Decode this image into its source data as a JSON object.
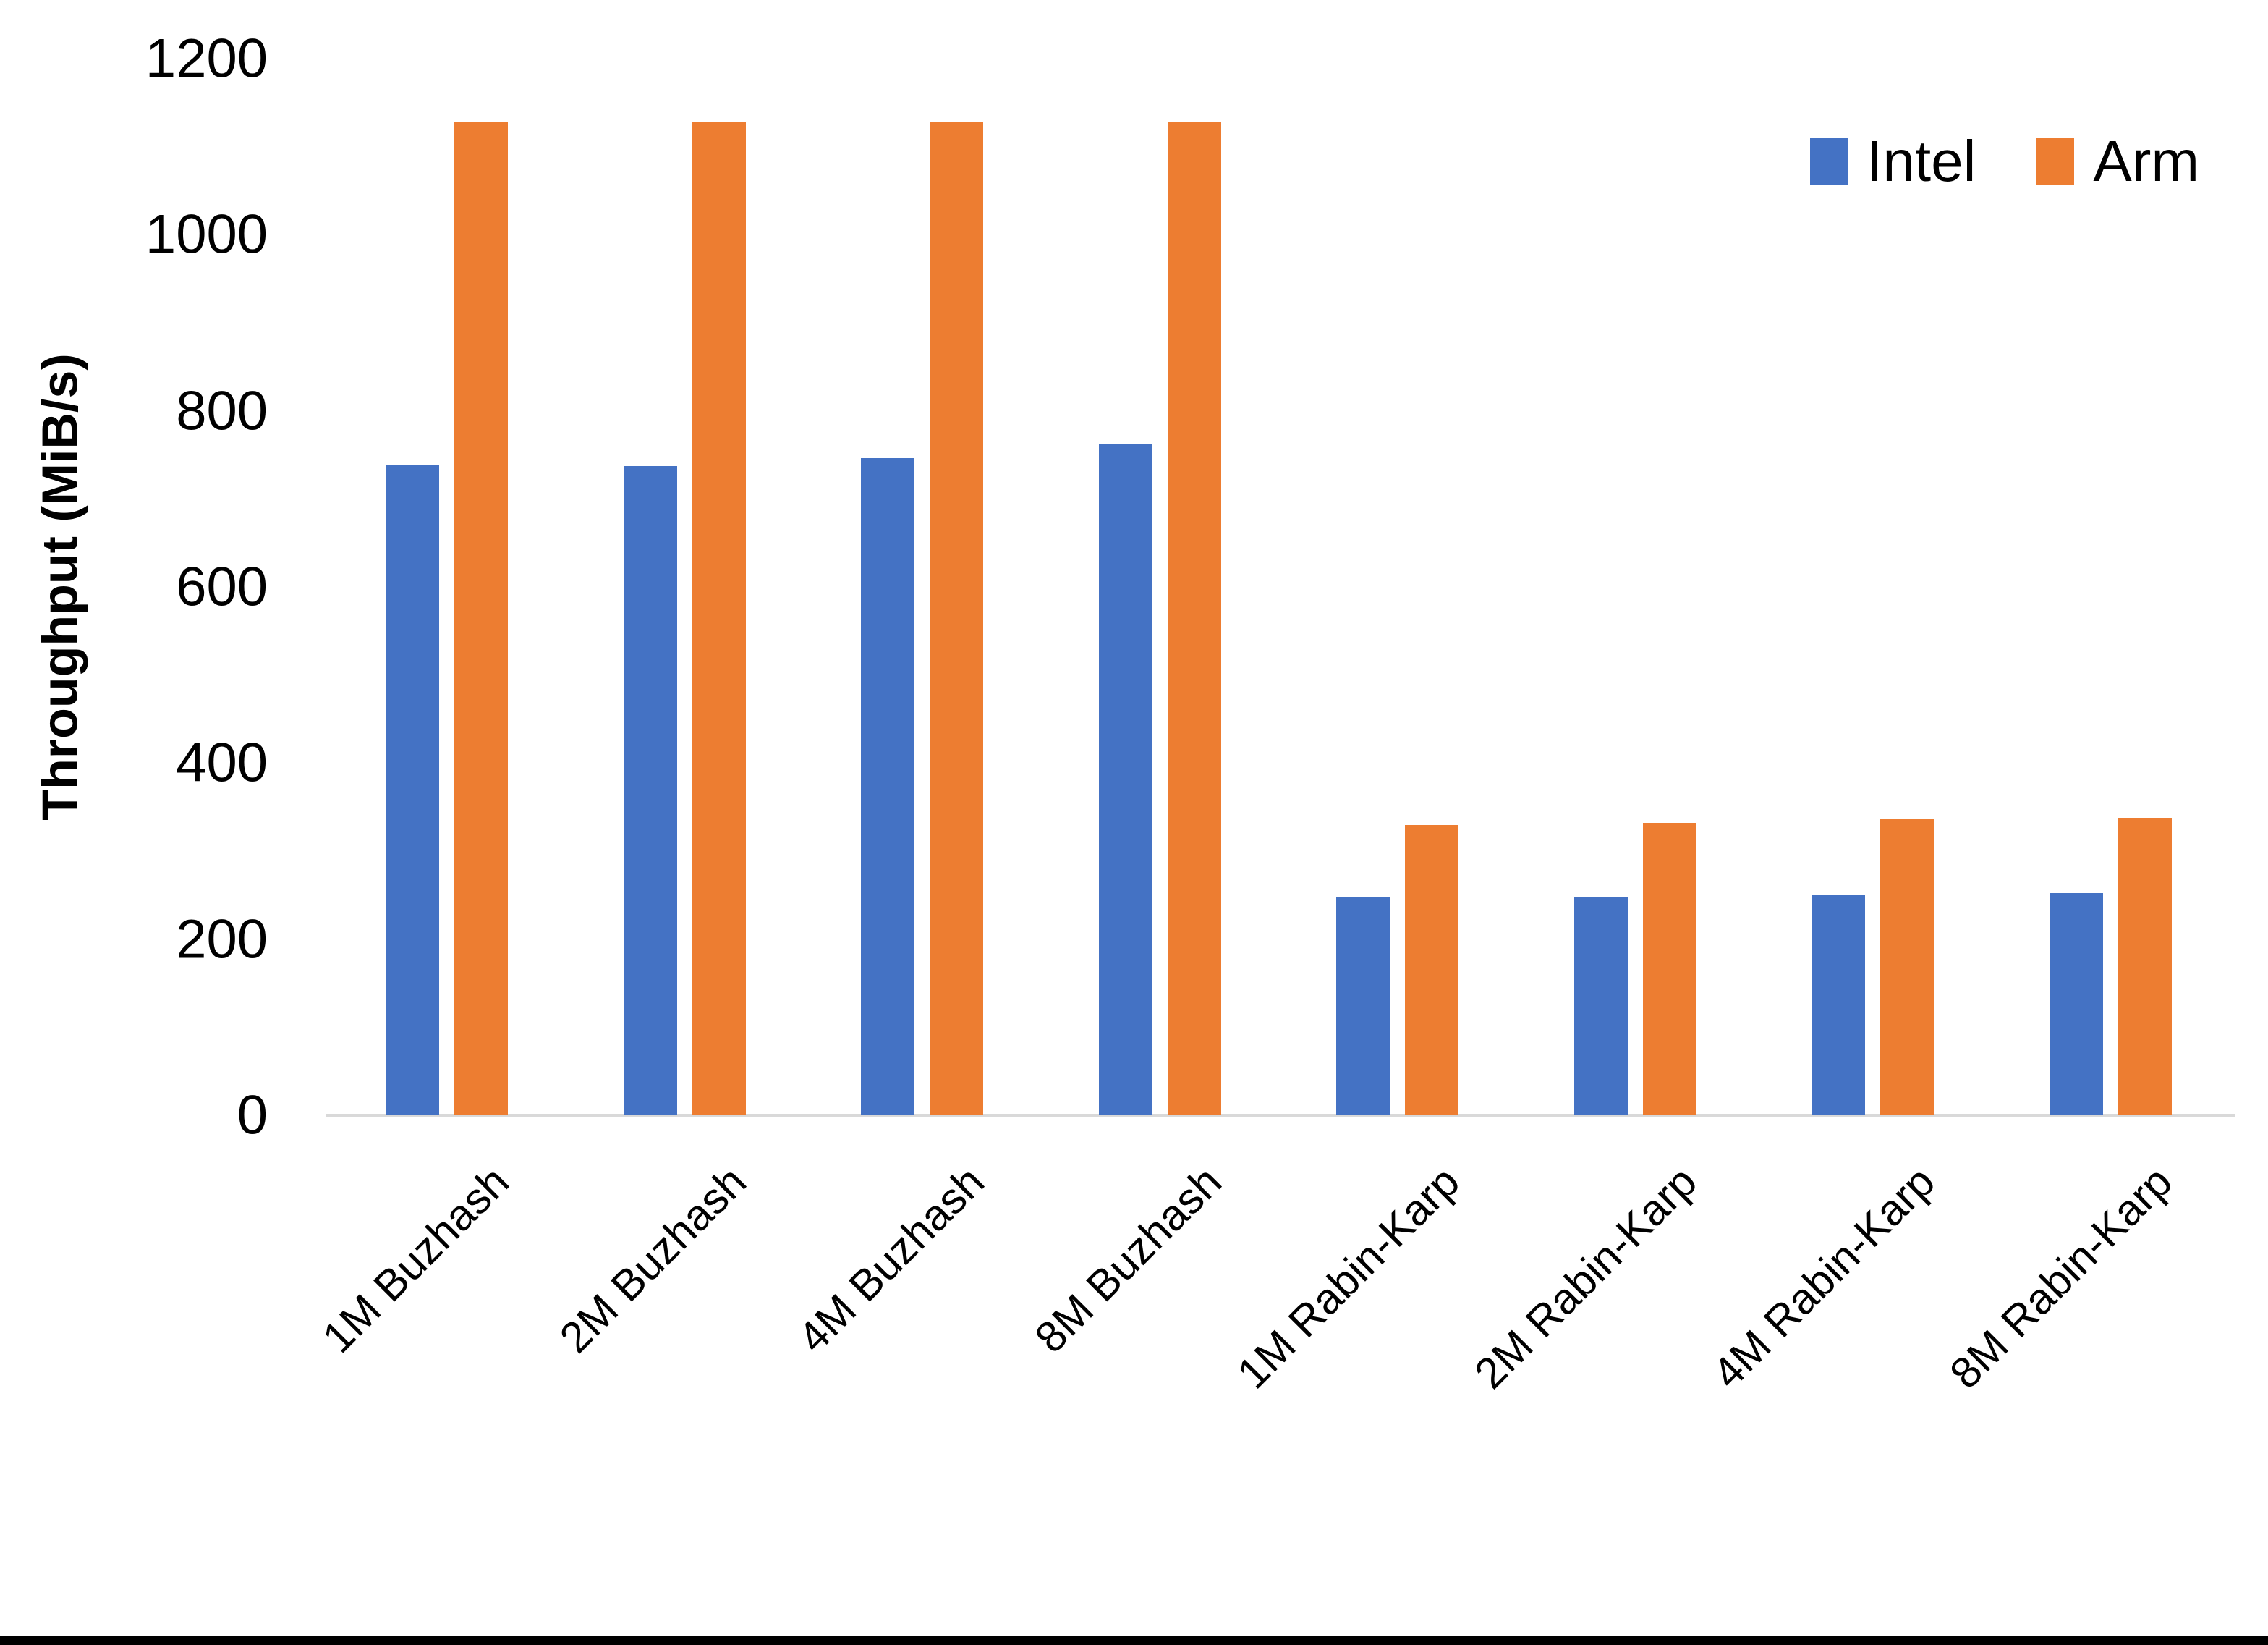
{
  "chart": {
    "y_axis_title": "Throughput (MiB/s)"
  },
  "colors": {
    "intel": "#4472C4",
    "arm": "#ED7D31",
    "axis_line": "#D9D9D9",
    "text": "#000000",
    "background": "#FFFFFF",
    "bottom_border": "#000000"
  },
  "legend": {
    "items": [
      "Intel",
      "Arm"
    ]
  },
  "chart_data": {
    "type": "bar",
    "title": "",
    "xlabel": "",
    "ylabel": "Throughput (MiB/s)",
    "ylim": [
      0,
      1200
    ],
    "yticks": [
      0,
      200,
      400,
      600,
      800,
      1000,
      1200
    ],
    "grid": false,
    "legend_position": "top-right",
    "categories": [
      "1M Buzhash",
      "2M Buzhash",
      "4M Buzhash",
      "8M Buzhash",
      "1M Rabin-Karp",
      "2M Rabin-Karp",
      "4M Rabin-Karp",
      "8M Rabin-Karp"
    ],
    "series": [
      {
        "name": "Intel",
        "color": "#4472C4",
        "values": [
          738,
          737,
          746,
          762,
          248,
          248,
          251,
          252
        ]
      },
      {
        "name": "Arm",
        "color": "#ED7D31",
        "values": [
          1128,
          1128,
          1128,
          1128,
          330,
          332,
          336,
          338
        ]
      }
    ]
  }
}
